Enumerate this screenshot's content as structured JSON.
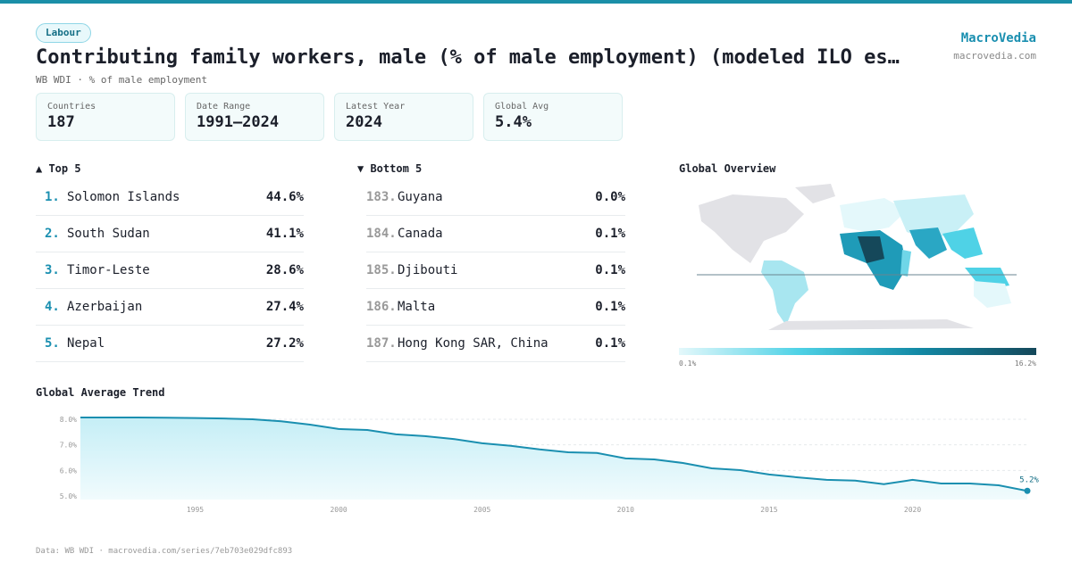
{
  "header": {
    "badge": "Labour",
    "title": "Contributing family workers, male (% of male employment) (modeled ILO es…",
    "subtitle": "WB WDI · % of male employment",
    "brand": "MacroVedia",
    "site": "macrovedia.com"
  },
  "stats": [
    {
      "label": "Countries",
      "value": "187"
    },
    {
      "label": "Date Range",
      "value": "1991–2024"
    },
    {
      "label": "Latest Year",
      "value": "2024"
    },
    {
      "label": "Global Avg",
      "value": "5.4%"
    }
  ],
  "top": {
    "title": "▲ Top 5",
    "items": [
      {
        "rank": "1.",
        "name": "Solomon Islands",
        "value": "44.6%"
      },
      {
        "rank": "2.",
        "name": "South Sudan",
        "value": "41.1%"
      },
      {
        "rank": "3.",
        "name": "Timor-Leste",
        "value": "28.6%"
      },
      {
        "rank": "4.",
        "name": "Azerbaijan",
        "value": "27.4%"
      },
      {
        "rank": "5.",
        "name": "Nepal",
        "value": "27.2%"
      }
    ]
  },
  "bottom": {
    "title": "▼ Bottom 5",
    "items": [
      {
        "rank": "183.",
        "name": "Guyana",
        "value": "0.0%"
      },
      {
        "rank": "184.",
        "name": "Canada",
        "value": "0.1%"
      },
      {
        "rank": "185.",
        "name": "Djibouti",
        "value": "0.1%"
      },
      {
        "rank": "186.",
        "name": "Malta",
        "value": "0.1%"
      },
      {
        "rank": "187.",
        "name": "Hong Kong SAR, China",
        "value": "0.1%"
      }
    ]
  },
  "map": {
    "title": "Global Overview",
    "scale_min": "0.1%",
    "scale_max": "16.2%",
    "colors": [
      "#e4f8fb",
      "#4fd2e6",
      "#138aa6",
      "#15485a"
    ]
  },
  "chart_data": {
    "type": "line",
    "title": "Global Average Trend",
    "color": "#1a8fb0",
    "x": [
      1991,
      1992,
      1993,
      1994,
      1995,
      1996,
      1997,
      1998,
      1999,
      2000,
      2001,
      2002,
      2003,
      2004,
      2005,
      2006,
      2007,
      2008,
      2009,
      2010,
      2011,
      2012,
      2013,
      2014,
      2015,
      2016,
      2017,
      2018,
      2019,
      2020,
      2021,
      2022,
      2023,
      2024
    ],
    "values": [
      8.07,
      8.07,
      8.07,
      8.06,
      8.05,
      8.03,
      8.0,
      7.92,
      7.79,
      7.62,
      7.58,
      7.41,
      7.34,
      7.23,
      7.06,
      6.96,
      6.82,
      6.71,
      6.68,
      6.47,
      6.43,
      6.29,
      6.08,
      6.01,
      5.84,
      5.73,
      5.63,
      5.6,
      5.46,
      5.63,
      5.49,
      5.49,
      5.42,
      5.2
    ],
    "value_labels": [
      null,
      null,
      null,
      null,
      null,
      null,
      null,
      null,
      null,
      null,
      null,
      null,
      null,
      null,
      null,
      null,
      null,
      null,
      null,
      null,
      null,
      null,
      null,
      null,
      null,
      null,
      null,
      null,
      null,
      null,
      null,
      null,
      null,
      "5.2%"
    ],
    "xlim": [
      1991,
      2024
    ],
    "ylim": [
      5.0,
      8.0
    ],
    "xticks": [
      1995,
      2000,
      2005,
      2010,
      2015,
      2020
    ],
    "yticks": [
      {
        "value": 5.0,
        "label": "5.0%"
      },
      {
        "value": 6.0,
        "label": "6.0%"
      },
      {
        "value": 7.0,
        "label": "7.0%"
      },
      {
        "value": 8.0,
        "label": "8.0%"
      }
    ],
    "grid": true
  },
  "footer": "Data: WB WDI · macrovedia.com/series/7eb703e029dfc893"
}
